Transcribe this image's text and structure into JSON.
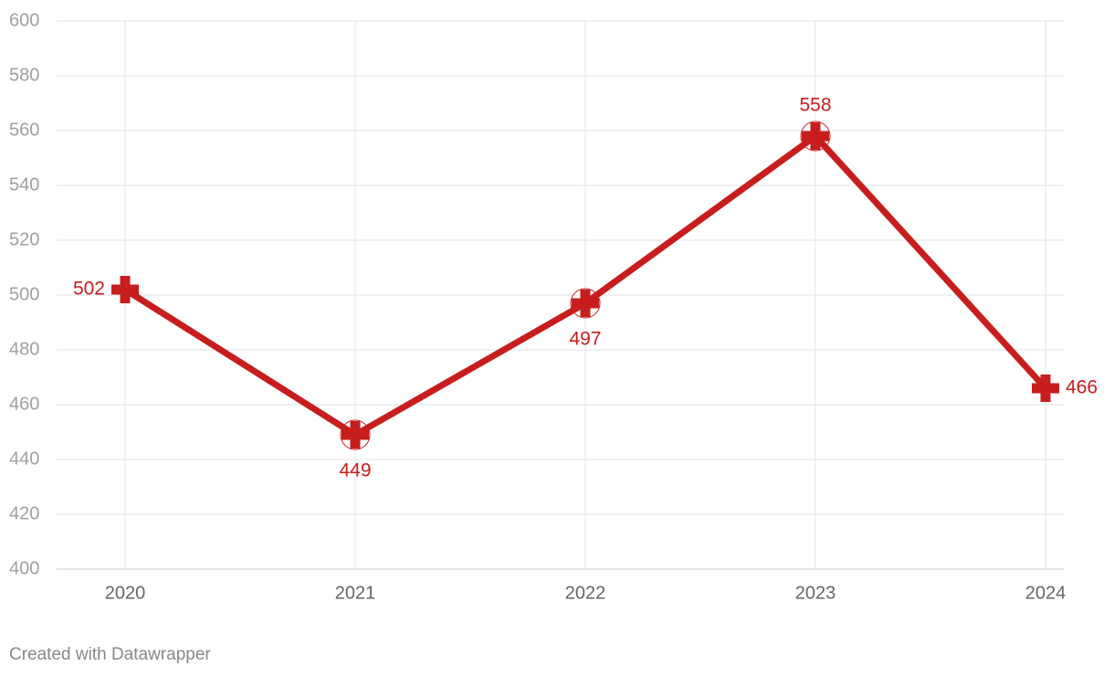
{
  "chart_data": {
    "type": "line",
    "categories": [
      "2020",
      "2021",
      "2022",
      "2023",
      "2024"
    ],
    "values": [
      502,
      449,
      497,
      558,
      466
    ],
    "color": "#c71e1d",
    "ylim": [
      400,
      600
    ],
    "yticks": [
      400,
      420,
      440,
      460,
      480,
      500,
      520,
      540,
      560,
      580,
      600
    ],
    "grid": true
  },
  "footer": "Created with Datawrapper"
}
